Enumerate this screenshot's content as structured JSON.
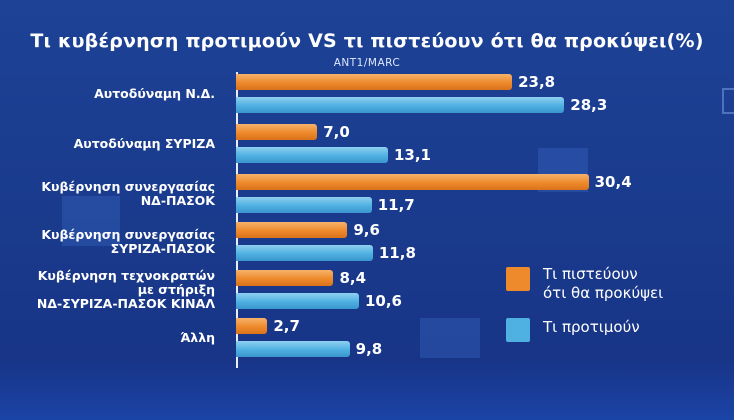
{
  "chart_data": {
    "type": "bar",
    "orientation": "horizontal",
    "title": "Τι κυβέρνηση προτιμούν VS τι πιστεύουν ότι θα προκύψει(%)",
    "subtitle": "ΑΝΤ1/MARC",
    "categories": [
      [
        "Αυτοδύναμη  Ν.Δ."
      ],
      [
        "Αυτοδύναμη ΣΥΡΙΖΑ"
      ],
      [
        "Κυβέρνηση συνεργασίας",
        "ΝΔ-ΠΑΣΟΚ"
      ],
      [
        "Κυβέρνηση συνεργασίας",
        "ΣΥΡΙΖΑ-ΠΑΣΟΚ"
      ],
      [
        "Κυβέρνηση τεχνοκρατών",
        "με στήριξη",
        "ΝΔ-ΣΥΡΙΖΑ-ΠΑΣΟΚ ΚΙΝΑΛ"
      ],
      [
        "Άλλη"
      ]
    ],
    "series": [
      {
        "name": "Τι πιστεύουν ότι θα προκύψει",
        "legend_lines": [
          "Τι πιστεύουν",
          "ότι θα προκύψει"
        ],
        "color": "#ee8a2c",
        "values": [
          23.8,
          7.0,
          30.4,
          9.6,
          8.4,
          2.7
        ],
        "labels": [
          "23,8",
          "7,0",
          "30,4",
          "9,6",
          "8,4",
          "2,7"
        ]
      },
      {
        "name": "Τι προτιμούν",
        "legend_lines": [
          "Τι προτιμούν"
        ],
        "color": "#4fb0e2",
        "values": [
          28.3,
          13.1,
          11.7,
          11.8,
          10.6,
          9.8
        ],
        "labels": [
          "28,3",
          "13,1",
          "11,7",
          "11,8",
          "10,6",
          "9,8"
        ]
      }
    ],
    "xlim": [
      0,
      32
    ],
    "grid": false,
    "legend_position": "right"
  }
}
